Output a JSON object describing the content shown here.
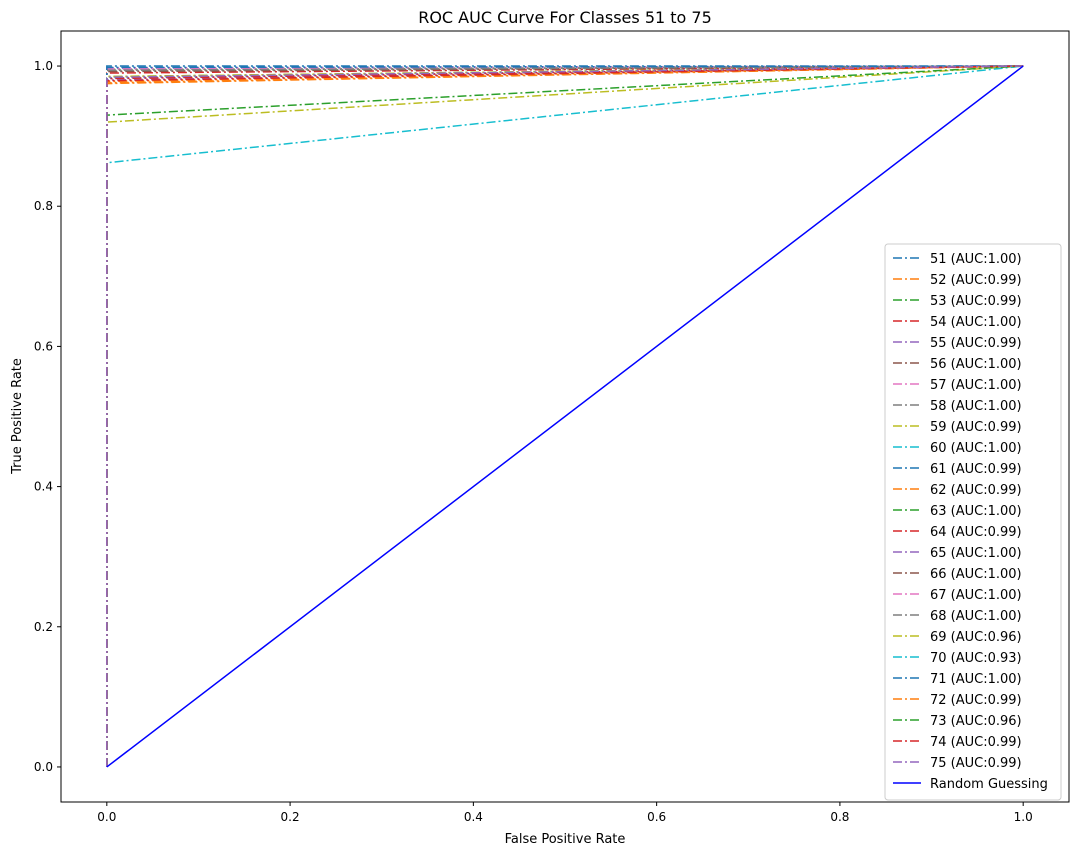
{
  "chart_data": {
    "type": "line",
    "title": "ROC AUC Curve For Classes 51 to 75",
    "xlabel": "False Positive Rate",
    "ylabel": "True Positive Rate",
    "xlim": [
      -0.05,
      1.05
    ],
    "ylim": [
      -0.05,
      1.05
    ],
    "xticks": [
      "0.0",
      "0.2",
      "0.4",
      "0.6",
      "0.8",
      "1.0"
    ],
    "yticks": [
      "0.0",
      "0.2",
      "0.4",
      "0.6",
      "0.8",
      "1.0"
    ],
    "grid": false,
    "legend_position": "lower right",
    "series": [
      {
        "name": "51 (AUC:1.00)",
        "color": "#1f77b4",
        "style": "dashdot",
        "x": [
          0,
          0,
          1
        ],
        "y": [
          0,
          1.0,
          1
        ]
      },
      {
        "name": "52 (AUC:0.99)",
        "color": "#ff7f0e",
        "style": "dashdot",
        "x": [
          0,
          0,
          1
        ],
        "y": [
          0,
          0.976,
          1
        ]
      },
      {
        "name": "53 (AUC:0.99)",
        "color": "#2ca02c",
        "style": "dashdot",
        "x": [
          0,
          0,
          1
        ],
        "y": [
          0,
          0.985,
          1
        ]
      },
      {
        "name": "54 (AUC:1.00)",
        "color": "#d62728",
        "style": "dashdot",
        "x": [
          0,
          0,
          1
        ],
        "y": [
          0,
          0.99,
          1
        ]
      },
      {
        "name": "55 (AUC:0.99)",
        "color": "#9467bd",
        "style": "dashdot",
        "x": [
          0,
          0,
          1
        ],
        "y": [
          0,
          0.98,
          1
        ]
      },
      {
        "name": "56 (AUC:1.00)",
        "color": "#8c564b",
        "style": "dashdot",
        "x": [
          0,
          0,
          1
        ],
        "y": [
          0,
          0.994,
          1
        ]
      },
      {
        "name": "57 (AUC:1.00)",
        "color": "#e377c2",
        "style": "dashdot",
        "x": [
          0,
          0,
          1
        ],
        "y": [
          0,
          0.997,
          1
        ]
      },
      {
        "name": "58 (AUC:1.00)",
        "color": "#7f7f7f",
        "style": "dashdot",
        "x": [
          0,
          0,
          1
        ],
        "y": [
          0,
          0.993,
          1
        ]
      },
      {
        "name": "59 (AUC:0.99)",
        "color": "#bcbd22",
        "style": "dashdot",
        "x": [
          0,
          0,
          1
        ],
        "y": [
          0,
          0.985,
          1
        ]
      },
      {
        "name": "60 (AUC:1.00)",
        "color": "#17becf",
        "style": "dashdot",
        "x": [
          0,
          0,
          1
        ],
        "y": [
          0,
          0.996,
          1
        ]
      },
      {
        "name": "61 (AUC:0.99)",
        "color": "#1f77b4",
        "style": "dashdot",
        "x": [
          0,
          0,
          1
        ],
        "y": [
          0,
          0.983,
          1
        ]
      },
      {
        "name": "62 (AUC:0.99)",
        "color": "#ff7f0e",
        "style": "dashdot",
        "x": [
          0,
          0,
          1
        ],
        "y": [
          0,
          0.978,
          1
        ]
      },
      {
        "name": "63 (AUC:1.00)",
        "color": "#2ca02c",
        "style": "dashdot",
        "x": [
          0,
          0,
          1
        ],
        "y": [
          0,
          0.995,
          1
        ]
      },
      {
        "name": "64 (AUC:0.99)",
        "color": "#d62728",
        "style": "dashdot",
        "x": [
          0,
          0,
          1
        ],
        "y": [
          0,
          0.982,
          1
        ]
      },
      {
        "name": "65 (AUC:1.00)",
        "color": "#9467bd",
        "style": "dashdot",
        "x": [
          0,
          0,
          1
        ],
        "y": [
          0,
          0.997,
          1
        ]
      },
      {
        "name": "66 (AUC:1.00)",
        "color": "#8c564b",
        "style": "dashdot",
        "x": [
          0,
          0,
          1
        ],
        "y": [
          0,
          0.992,
          1
        ]
      },
      {
        "name": "67 (AUC:1.00)",
        "color": "#e377c2",
        "style": "dashdot",
        "x": [
          0,
          0,
          1
        ],
        "y": [
          0,
          0.996,
          1
        ]
      },
      {
        "name": "68 (AUC:1.00)",
        "color": "#7f7f7f",
        "style": "dashdot",
        "x": [
          0,
          0,
          1
        ],
        "y": [
          0,
          0.994,
          1
        ]
      },
      {
        "name": "69 (AUC:0.96)",
        "color": "#bcbd22",
        "style": "dashdot",
        "x": [
          0,
          0,
          1
        ],
        "y": [
          0,
          0.92,
          1
        ]
      },
      {
        "name": "70 (AUC:0.93)",
        "color": "#17becf",
        "style": "dashdot",
        "x": [
          0,
          0,
          1
        ],
        "y": [
          0,
          0.862,
          1
        ]
      },
      {
        "name": "71 (AUC:1.00)",
        "color": "#1f77b4",
        "style": "dashdot",
        "x": [
          0,
          0,
          1
        ],
        "y": [
          0,
          0.998,
          1
        ]
      },
      {
        "name": "72 (AUC:0.99)",
        "color": "#ff7f0e",
        "style": "dashdot",
        "x": [
          0,
          0,
          1
        ],
        "y": [
          0,
          0.975,
          1
        ]
      },
      {
        "name": "73 (AUC:0.96)",
        "color": "#2ca02c",
        "style": "dashdot",
        "x": [
          0,
          0,
          1
        ],
        "y": [
          0,
          0.93,
          1
        ]
      },
      {
        "name": "74 (AUC:0.99)",
        "color": "#d62728",
        "style": "dashdot",
        "x": [
          0,
          0,
          1
        ],
        "y": [
          0,
          0.979,
          1
        ]
      },
      {
        "name": "75 (AUC:0.99)",
        "color": "#9467bd",
        "style": "dashdot",
        "x": [
          0,
          0,
          1
        ],
        "y": [
          0,
          0.984,
          1
        ]
      },
      {
        "name": "Random Guessing",
        "color": "#0000ff",
        "style": "solid",
        "x": [
          0,
          1
        ],
        "y": [
          0,
          1
        ]
      }
    ]
  }
}
